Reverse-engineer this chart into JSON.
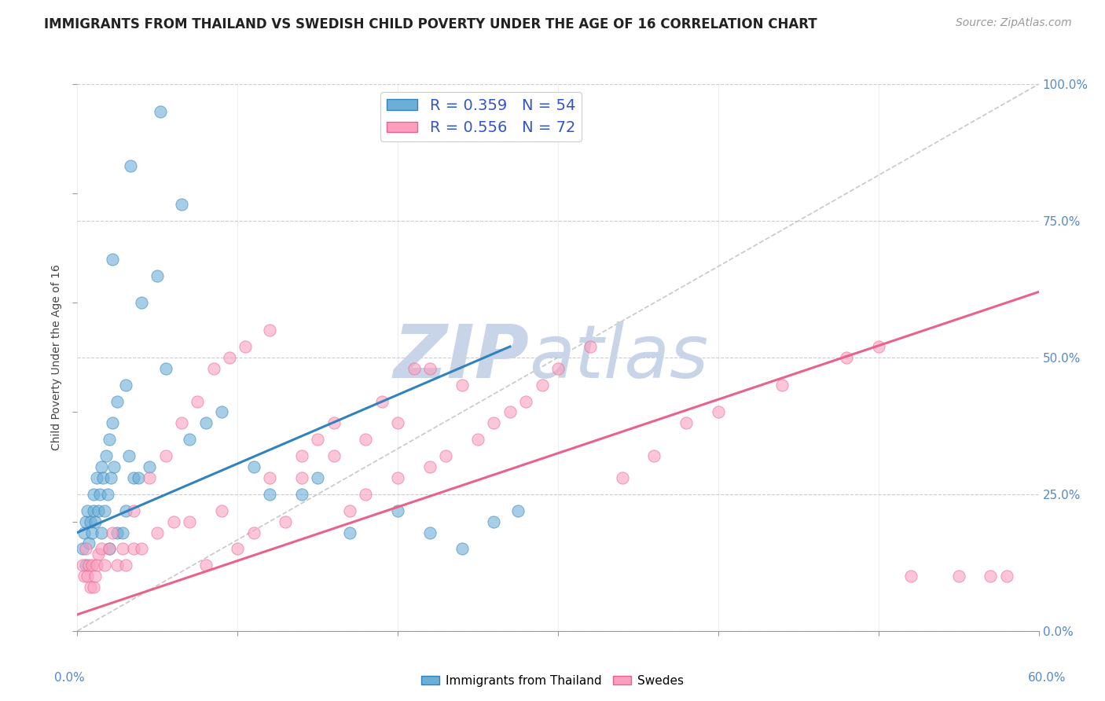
{
  "title": "IMMIGRANTS FROM THAILAND VS SWEDISH CHILD POVERTY UNDER THE AGE OF 16 CORRELATION CHART",
  "source": "Source: ZipAtlas.com",
  "ylabel": "Child Poverty Under the Age of 16",
  "xlim": [
    0.0,
    60.0
  ],
  "ylim": [
    0.0,
    100.0
  ],
  "yticks": [
    0.0,
    25.0,
    50.0,
    75.0,
    100.0
  ],
  "xticks": [
    0.0,
    10.0,
    20.0,
    30.0,
    40.0,
    50.0,
    60.0
  ],
  "legend_labels": [
    "Immigrants from Thailand",
    "Swedes"
  ],
  "blue_scatter_x": [
    0.3,
    0.4,
    0.5,
    0.5,
    0.6,
    0.7,
    0.8,
    0.9,
    1.0,
    1.0,
    1.1,
    1.2,
    1.3,
    1.4,
    1.5,
    1.5,
    1.6,
    1.7,
    1.8,
    1.9,
    2.0,
    2.0,
    2.1,
    2.2,
    2.3,
    2.5,
    2.5,
    2.8,
    3.0,
    3.0,
    3.2,
    3.5,
    3.8,
    4.0,
    4.5,
    5.0,
    5.5,
    6.5,
    7.0,
    8.0,
    9.0,
    11.0,
    12.0,
    14.0,
    15.0,
    17.0,
    20.0,
    22.0,
    24.0,
    26.0,
    2.2,
    3.3,
    5.2,
    27.5
  ],
  "blue_scatter_y": [
    15.0,
    18.0,
    12.0,
    20.0,
    22.0,
    16.0,
    20.0,
    18.0,
    25.0,
    22.0,
    20.0,
    28.0,
    22.0,
    25.0,
    30.0,
    18.0,
    28.0,
    22.0,
    32.0,
    25.0,
    15.0,
    35.0,
    28.0,
    38.0,
    30.0,
    18.0,
    42.0,
    18.0,
    45.0,
    22.0,
    32.0,
    28.0,
    28.0,
    60.0,
    30.0,
    65.0,
    48.0,
    78.0,
    35.0,
    38.0,
    40.0,
    30.0,
    25.0,
    25.0,
    28.0,
    18.0,
    22.0,
    18.0,
    15.0,
    20.0,
    68.0,
    85.0,
    95.0,
    22.0
  ],
  "pink_scatter_x": [
    0.3,
    0.4,
    0.5,
    0.6,
    0.7,
    0.8,
    0.9,
    1.0,
    1.1,
    1.2,
    1.3,
    1.5,
    1.7,
    2.0,
    2.2,
    2.5,
    2.8,
    3.0,
    3.5,
    4.0,
    5.0,
    6.0,
    7.0,
    8.0,
    9.0,
    10.0,
    11.0,
    12.0,
    13.0,
    14.0,
    15.0,
    16.0,
    17.0,
    18.0,
    19.0,
    20.0,
    21.0,
    22.0,
    23.0,
    24.0,
    25.0,
    26.0,
    27.0,
    28.0,
    29.0,
    30.0,
    32.0,
    34.0,
    36.0,
    38.0,
    40.0,
    44.0,
    48.0,
    50.0,
    52.0,
    55.0,
    57.0,
    58.0,
    3.5,
    4.5,
    5.5,
    6.5,
    7.5,
    8.5,
    9.5,
    10.5,
    12.0,
    14.0,
    16.0,
    18.0,
    20.0,
    22.0
  ],
  "pink_scatter_y": [
    12.0,
    10.0,
    15.0,
    10.0,
    12.0,
    8.0,
    12.0,
    8.0,
    10.0,
    12.0,
    14.0,
    15.0,
    12.0,
    15.0,
    18.0,
    12.0,
    15.0,
    12.0,
    15.0,
    15.0,
    18.0,
    20.0,
    20.0,
    12.0,
    22.0,
    15.0,
    18.0,
    28.0,
    20.0,
    32.0,
    35.0,
    38.0,
    22.0,
    25.0,
    42.0,
    28.0,
    48.0,
    30.0,
    32.0,
    45.0,
    35.0,
    38.0,
    40.0,
    42.0,
    45.0,
    48.0,
    52.0,
    28.0,
    32.0,
    38.0,
    40.0,
    45.0,
    50.0,
    52.0,
    10.0,
    10.0,
    10.0,
    10.0,
    22.0,
    28.0,
    32.0,
    38.0,
    42.0,
    48.0,
    50.0,
    52.0,
    55.0,
    28.0,
    32.0,
    35.0,
    38.0,
    48.0
  ],
  "blue_line_x": [
    0.0,
    27.0
  ],
  "blue_line_y": [
    18.0,
    52.0
  ],
  "pink_line_x": [
    0.0,
    60.0
  ],
  "pink_line_y": [
    3.0,
    62.0
  ],
  "diag_line_x": [
    0.0,
    60.0
  ],
  "diag_line_y": [
    0.0,
    100.0
  ],
  "blue_scatter_color": "#6baed6",
  "pink_scatter_color": "#fc9fbf",
  "blue_line_color": "#3182bd",
  "pink_line_color": "#e8628a",
  "diag_line_color": "#bbbbbb",
  "watermark_zip": "ZIP",
  "watermark_atlas": "atlas",
  "watermark_color": "#c8d4e8",
  "background_color": "#ffffff",
  "title_fontsize": 12,
  "source_fontsize": 10,
  "axis_label_fontsize": 10,
  "tick_fontsize": 11,
  "legend_fontsize": 14
}
